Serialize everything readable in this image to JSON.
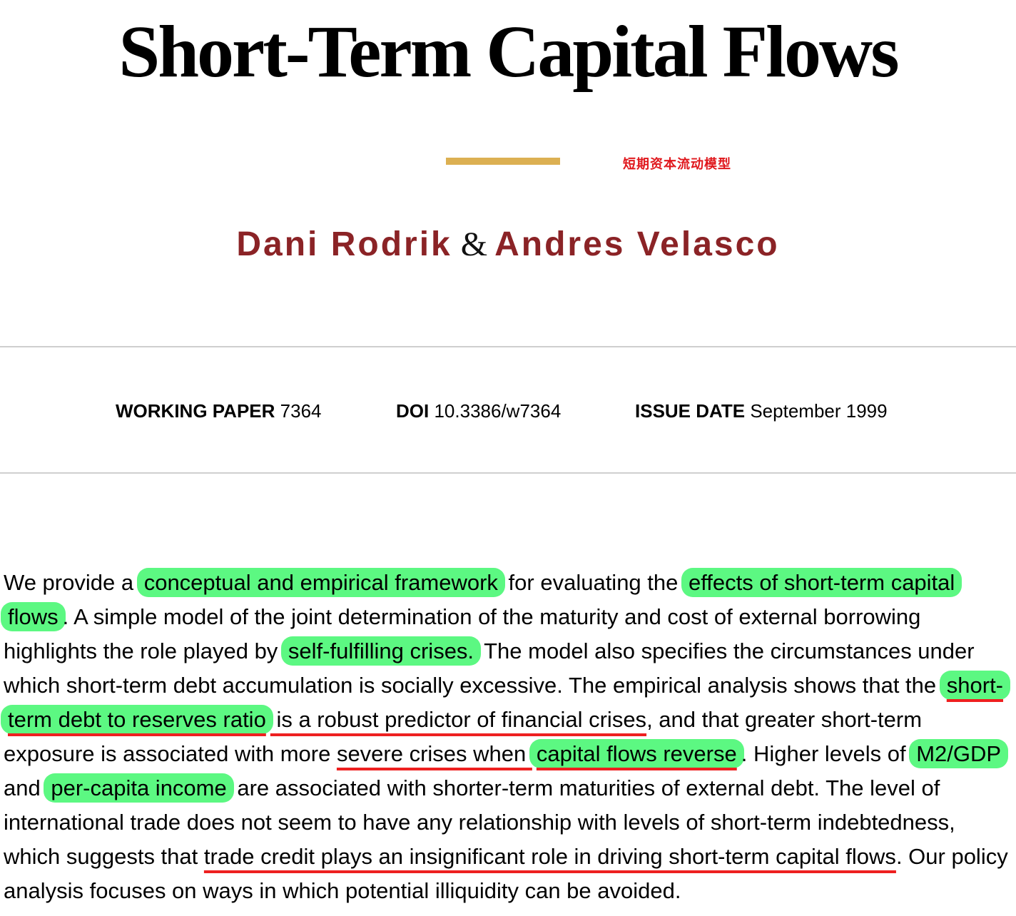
{
  "title": "Short-Term Capital Flows",
  "annotation_cn": "短期资本流动模型",
  "authors": {
    "first": "Dani Rodrik",
    "separator": "&",
    "second": "Andres Velasco"
  },
  "meta": {
    "working_paper_label": "WORKING PAPER",
    "working_paper_value": "7364",
    "doi_label": "DOI",
    "doi_value": "10.3386/w7364",
    "issue_date_label": "ISSUE DATE",
    "issue_date_value": "September 1999"
  },
  "abstract": {
    "s1": "We provide a ",
    "s2": "conceptual and empirical framework",
    "s3": " for evaluating the ",
    "s4": "effects of short-term capital flows",
    "s5": ". A simple model of the joint determination of the maturity and cost of external borrowing highlights the role played by ",
    "s6": "self-fulfilling crises.",
    "s7": " The model also specifies the circumstances under which short-term debt accumulation is socially excessive. The empirical analysis shows that the ",
    "s8": "short-term debt to reserves ratio",
    "s9": " is a robust predictor of financial crises",
    "s10": ", and that greater short-term exposure is associated with more ",
    "s11": "severe crises when ",
    "s12": "capital flows reverse",
    "s13": ". Higher levels of ",
    "s14": "M2/GDP",
    "s15": " and ",
    "s16": "per-capita income",
    "s17": " are associated with shorter-term maturities of external debt. The level of international trade does not seem to have any relationship with levels of short-term indebtedness, which suggests that ",
    "s18": "trade credit plays an insignificant role in driving short-term capital flows",
    "s19": ". Our policy analysis focuses on ways in which potential illiquidity can be avoided."
  },
  "colors": {
    "highlight": "#5cf882",
    "underline": "#ee2020",
    "author": "#8b2326",
    "gold_rule": "#dcb052",
    "annotation": "#e0181d"
  }
}
